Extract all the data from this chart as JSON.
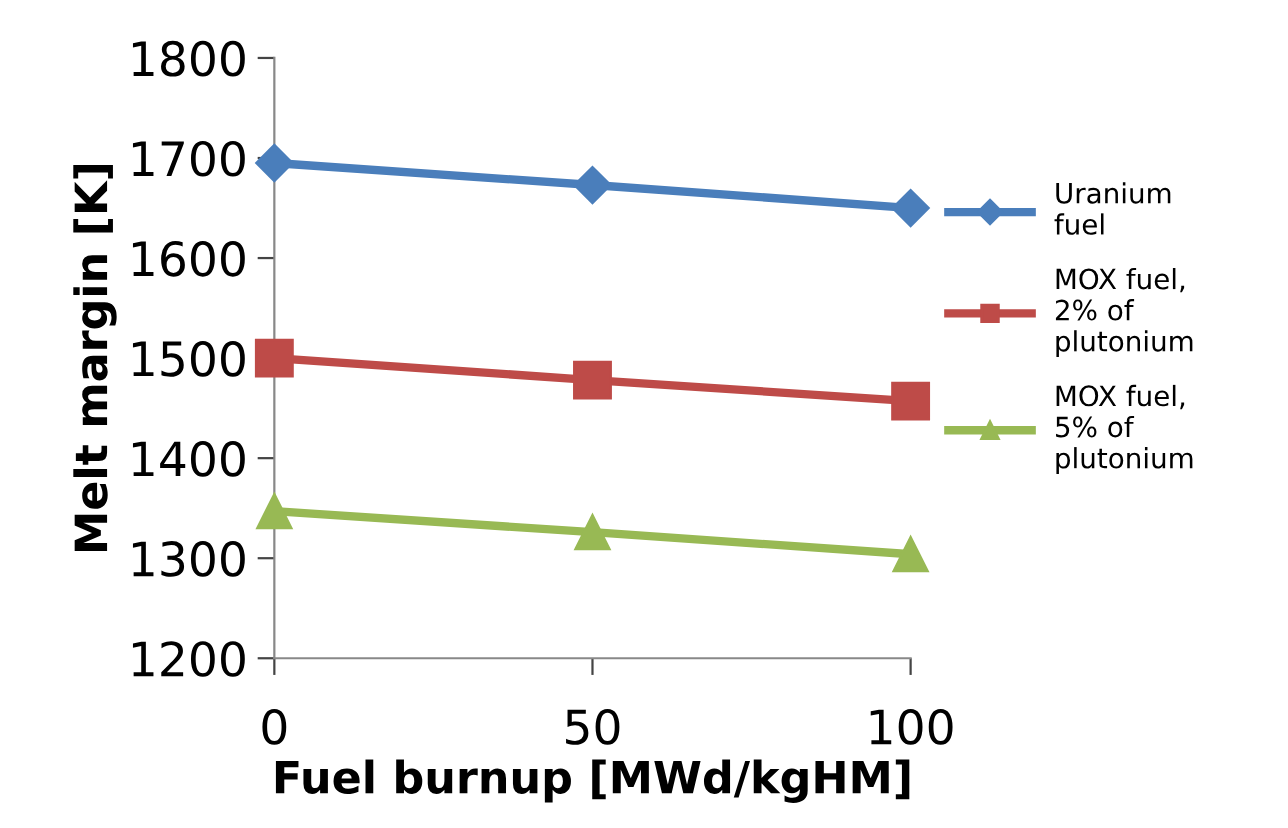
{
  "chart_data": {
    "type": "line",
    "xlabel": "Fuel burnup [MWd/kgHM]",
    "ylabel": "Melt margin [K]",
    "x": [
      0,
      50,
      100
    ],
    "series": [
      {
        "name": "Uranium\nfuel",
        "color": "#4a7ebb",
        "marker": "diamond",
        "values": [
          1695,
          1673,
          1650
        ]
      },
      {
        "name": "MOX fuel,\n2% of\nplutonium",
        "color": "#be4b48",
        "marker": "square",
        "values": [
          1500,
          1478,
          1457
        ]
      },
      {
        "name": "MOX fuel,\n5% of\nplutonium",
        "color": "#98b954",
        "marker": "triangle",
        "values": [
          1347,
          1326,
          1304
        ]
      }
    ],
    "xlim": [
      0,
      100
    ],
    "xticks": [
      0,
      50,
      100
    ],
    "ylim": [
      1200,
      1800
    ],
    "yticks": [
      1200,
      1300,
      1400,
      1500,
      1600,
      1700,
      1800
    ],
    "grid": false,
    "legend": "right",
    "line_style": "solid"
  }
}
